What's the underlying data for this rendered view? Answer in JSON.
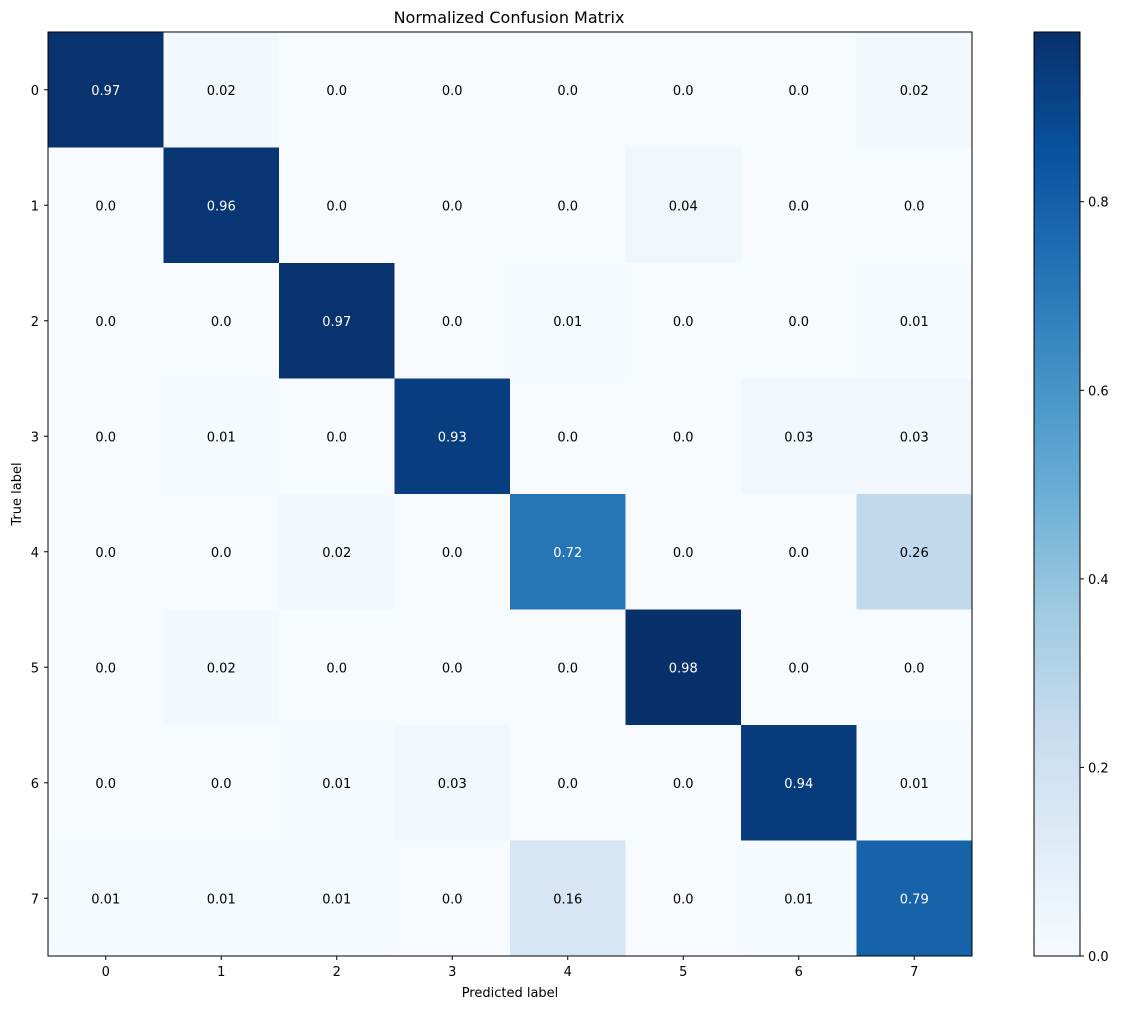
{
  "chart_data": {
    "type": "heatmap",
    "title": "Normalized Confusion Matrix",
    "xlabel": "Predicted label",
    "ylabel": "True label",
    "x_categories": [
      "0",
      "1",
      "2",
      "3",
      "4",
      "5",
      "6",
      "7"
    ],
    "y_categories": [
      "0",
      "1",
      "2",
      "3",
      "4",
      "5",
      "6",
      "7"
    ],
    "values": [
      [
        0.97,
        0.02,
        0.0,
        0.0,
        0.0,
        0.0,
        0.0,
        0.02
      ],
      [
        0.0,
        0.96,
        0.0,
        0.0,
        0.0,
        0.04,
        0.0,
        0.0
      ],
      [
        0.0,
        0.0,
        0.97,
        0.0,
        0.01,
        0.0,
        0.0,
        0.01
      ],
      [
        0.0,
        0.01,
        0.0,
        0.93,
        0.0,
        0.0,
        0.03,
        0.03
      ],
      [
        0.0,
        0.0,
        0.02,
        0.0,
        0.72,
        0.0,
        0.0,
        0.26
      ],
      [
        0.0,
        0.02,
        0.0,
        0.0,
        0.0,
        0.98,
        0.0,
        0.0
      ],
      [
        0.0,
        0.0,
        0.01,
        0.03,
        0.0,
        0.0,
        0.94,
        0.01
      ],
      [
        0.01,
        0.01,
        0.01,
        0.0,
        0.16,
        0.0,
        0.01,
        0.79
      ]
    ],
    "cell_labels": [
      [
        "0.97",
        "0.02",
        "0.0",
        "0.0",
        "0.0",
        "0.0",
        "0.0",
        "0.02"
      ],
      [
        "0.0",
        "0.96",
        "0.0",
        "0.0",
        "0.0",
        "0.04",
        "0.0",
        "0.0"
      ],
      [
        "0.0",
        "0.0",
        "0.97",
        "0.0",
        "0.01",
        "0.0",
        "0.0",
        "0.01"
      ],
      [
        "0.0",
        "0.01",
        "0.0",
        "0.93",
        "0.0",
        "0.0",
        "0.03",
        "0.03"
      ],
      [
        "0.0",
        "0.0",
        "0.02",
        "0.0",
        "0.72",
        "0.0",
        "0.0",
        "0.26"
      ],
      [
        "0.0",
        "0.02",
        "0.0",
        "0.0",
        "0.0",
        "0.98",
        "0.0",
        "0.0"
      ],
      [
        "0.0",
        "0.0",
        "0.01",
        "0.03",
        "0.0",
        "0.0",
        "0.94",
        "0.01"
      ],
      [
        "0.01",
        "0.01",
        "0.01",
        "0.0",
        "0.16",
        "0.0",
        "0.01",
        "0.79"
      ]
    ],
    "colormap": "Blues",
    "color_range": [
      0.0,
      0.98
    ],
    "colorbar": {
      "ticks": [
        0.0,
        0.2,
        0.4,
        0.6,
        0.8
      ],
      "tick_labels": [
        "0.0",
        "0.2",
        "0.4",
        "0.6",
        "0.8"
      ]
    },
    "text_threshold": 0.49,
    "text_colors": {
      "light_cell": "#000000",
      "dark_cell": "#ffffff"
    }
  }
}
